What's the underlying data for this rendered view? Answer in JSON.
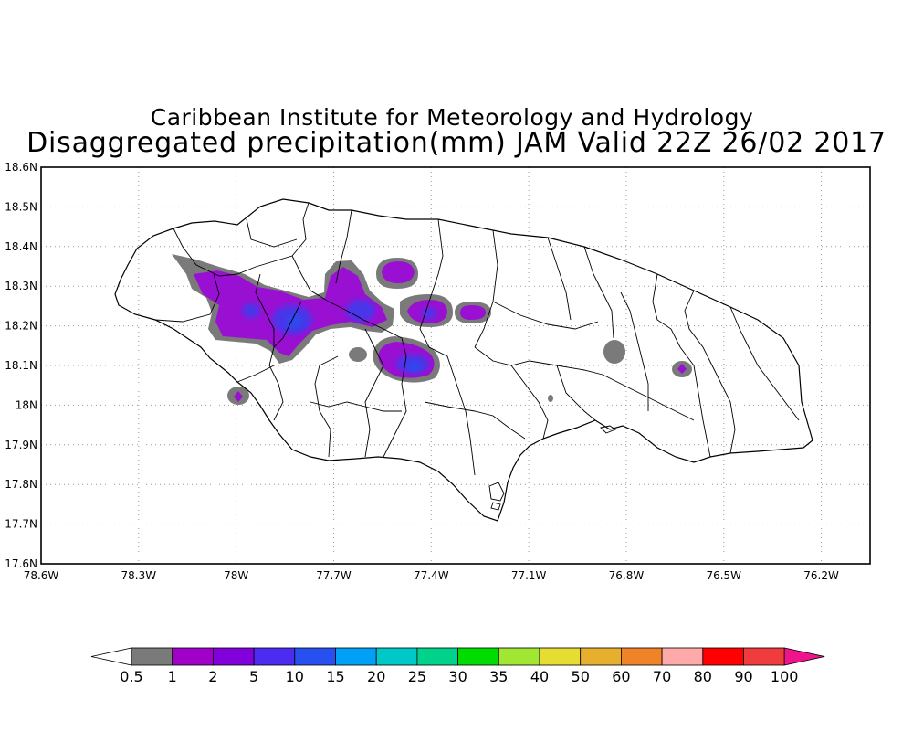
{
  "header": {
    "title": "Caribbean Institute for Meteorology and Hydrology",
    "subtitle": "Disaggregated precipitation(mm) JAM Valid 22Z 26/02 2017"
  },
  "map": {
    "region": "Jamaica",
    "lon_range": [
      -78.6,
      -76.05
    ],
    "lat_range": [
      17.6,
      18.6
    ],
    "lat_ticks": [
      "18.6N",
      "18.5N",
      "18.4N",
      "18.3N",
      "18.2N",
      "18.1N",
      "18N",
      "17.9N",
      "17.8N",
      "17.7N",
      "17.6N"
    ],
    "lon_ticks": [
      "78.6W",
      "78.3W",
      "78W",
      "77.7W",
      "77.4W",
      "77.1W",
      "76.8W",
      "76.5W",
      "76.2W"
    ],
    "grid": "dotted"
  },
  "colorbar": {
    "labels": [
      "0.5",
      "1",
      "2",
      "5",
      "10",
      "15",
      "20",
      "25",
      "30",
      "35",
      "40",
      "50",
      "60",
      "70",
      "80",
      "90",
      "100"
    ],
    "colors": [
      "#7a7a7a",
      "#a000c8",
      "#8200dc",
      "#4c2cf0",
      "#2850f0",
      "#00a0f6",
      "#00c8c8",
      "#00d28c",
      "#00dc00",
      "#a0e632",
      "#e6dc32",
      "#e6af2d",
      "#f08228",
      "#ffaaaa",
      "#ff0000",
      "#f03c3c"
    ],
    "under_color": "#ffffff",
    "over_color": "#f0148c"
  }
}
